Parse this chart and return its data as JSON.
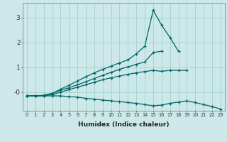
{
  "xlabel": "Humidex (Indice chaleur)",
  "background_color": "#cce8e8",
  "grid_color": "#99cccc",
  "line_color": "#006666",
  "xlim": [
    -0.5,
    23.5
  ],
  "ylim": [
    -0.75,
    3.6
  ],
  "x": [
    0,
    1,
    2,
    3,
    4,
    5,
    6,
    7,
    8,
    9,
    10,
    11,
    12,
    13,
    14,
    15,
    16,
    17,
    18,
    19,
    20,
    21,
    22,
    23
  ],
  "line1": [
    -0.15,
    -0.15,
    -0.13,
    -0.05,
    0.12,
    0.28,
    0.45,
    0.62,
    0.78,
    0.92,
    1.05,
    1.18,
    1.3,
    1.55,
    1.85,
    3.3,
    2.7,
    2.2,
    1.65,
    null,
    null,
    null,
    null,
    null
  ],
  "line2": [
    -0.15,
    -0.15,
    -0.13,
    -0.05,
    0.08,
    0.18,
    0.3,
    0.42,
    0.55,
    0.68,
    0.8,
    0.92,
    1.02,
    1.12,
    1.22,
    1.6,
    1.65,
    null,
    null,
    null,
    null,
    null,
    null,
    null
  ],
  "line3": [
    -0.15,
    -0.15,
    -0.15,
    -0.1,
    0.0,
    0.1,
    0.2,
    0.3,
    0.4,
    0.5,
    0.58,
    0.65,
    0.72,
    0.78,
    0.83,
    0.88,
    0.84,
    0.88,
    0.88,
    0.88,
    null,
    null,
    null,
    null
  ],
  "line4": [
    -0.15,
    -0.15,
    -0.15,
    -0.15,
    -0.15,
    -0.18,
    -0.2,
    -0.25,
    -0.28,
    -0.32,
    -0.35,
    -0.38,
    -0.42,
    -0.45,
    -0.5,
    -0.55,
    -0.52,
    -0.45,
    -0.4,
    -0.35,
    -0.42,
    -0.5,
    -0.58,
    -0.68
  ],
  "xticks": [
    0,
    1,
    2,
    3,
    4,
    5,
    6,
    7,
    8,
    9,
    10,
    11,
    12,
    13,
    14,
    15,
    16,
    17,
    18,
    19,
    20,
    21,
    22,
    23
  ],
  "yticks": [
    0.0,
    1.0,
    2.0,
    3.0
  ],
  "ytick_labels": [
    "-0",
    "1",
    "2",
    "3"
  ]
}
